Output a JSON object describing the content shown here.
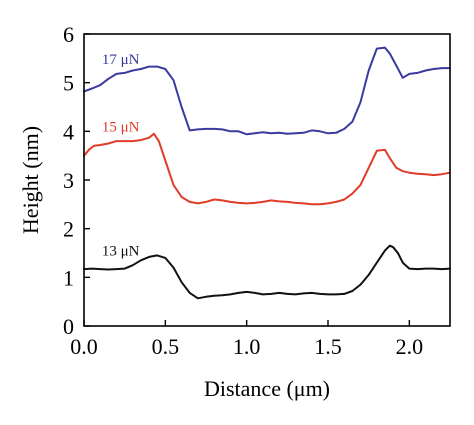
{
  "chart_data": {
    "type": "line",
    "title": "",
    "xlabel": "Distance (μm)",
    "ylabel": "Height (nm)",
    "xlim": [
      0,
      2.25
    ],
    "ylim": [
      0,
      6
    ],
    "x_ticks": [
      0.0,
      0.5,
      1.0,
      1.5,
      2.0
    ],
    "x_tick_labels": [
      "0.0",
      "0.5",
      "1.0",
      "1.5",
      "2.0"
    ],
    "y_ticks": [
      0,
      1,
      2,
      3,
      4,
      5,
      6
    ],
    "y_tick_labels": [
      "0",
      "1",
      "2",
      "3",
      "4",
      "5",
      "6"
    ],
    "grid": false,
    "series": [
      {
        "name": "17 μN",
        "color": "#3a3aa0",
        "label_at": [
          0.11,
          5.38
        ],
        "points": [
          [
            0,
            4.82
          ],
          [
            0.05,
            4.88
          ],
          [
            0.1,
            4.95
          ],
          [
            0.15,
            5.08
          ],
          [
            0.2,
            5.18
          ],
          [
            0.25,
            5.2
          ],
          [
            0.3,
            5.25
          ],
          [
            0.35,
            5.28
          ],
          [
            0.4,
            5.33
          ],
          [
            0.45,
            5.33
          ],
          [
            0.5,
            5.28
          ],
          [
            0.55,
            5.05
          ],
          [
            0.6,
            4.5
          ],
          [
            0.65,
            4.02
          ],
          [
            0.7,
            4.04
          ],
          [
            0.75,
            4.05
          ],
          [
            0.8,
            4.05
          ],
          [
            0.85,
            4.04
          ],
          [
            0.9,
            4.0
          ],
          [
            0.95,
            4.0
          ],
          [
            1.0,
            3.94
          ],
          [
            1.05,
            3.96
          ],
          [
            1.1,
            3.98
          ],
          [
            1.15,
            3.96
          ],
          [
            1.2,
            3.97
          ],
          [
            1.25,
            3.95
          ],
          [
            1.3,
            3.96
          ],
          [
            1.35,
            3.97
          ],
          [
            1.4,
            4.02
          ],
          [
            1.45,
            4.0
          ],
          [
            1.5,
            3.96
          ],
          [
            1.55,
            3.97
          ],
          [
            1.6,
            4.05
          ],
          [
            1.65,
            4.2
          ],
          [
            1.7,
            4.6
          ],
          [
            1.75,
            5.25
          ],
          [
            1.8,
            5.7
          ],
          [
            1.85,
            5.72
          ],
          [
            1.88,
            5.6
          ],
          [
            1.92,
            5.35
          ],
          [
            1.96,
            5.1
          ],
          [
            2.0,
            5.18
          ],
          [
            2.05,
            5.2
          ],
          [
            2.1,
            5.25
          ],
          [
            2.15,
            5.28
          ],
          [
            2.2,
            5.3
          ],
          [
            2.25,
            5.3
          ]
        ]
      },
      {
        "name": "15 μN",
        "color": "#e03c28",
        "label_at": [
          0.11,
          4.0
        ],
        "points": [
          [
            0,
            3.5
          ],
          [
            0.03,
            3.62
          ],
          [
            0.06,
            3.7
          ],
          [
            0.1,
            3.72
          ],
          [
            0.15,
            3.75
          ],
          [
            0.2,
            3.8
          ],
          [
            0.25,
            3.8
          ],
          [
            0.3,
            3.8
          ],
          [
            0.35,
            3.82
          ],
          [
            0.4,
            3.87
          ],
          [
            0.43,
            3.95
          ],
          [
            0.46,
            3.8
          ],
          [
            0.5,
            3.4
          ],
          [
            0.55,
            2.9
          ],
          [
            0.6,
            2.65
          ],
          [
            0.65,
            2.55
          ],
          [
            0.7,
            2.52
          ],
          [
            0.75,
            2.55
          ],
          [
            0.8,
            2.6
          ],
          [
            0.85,
            2.58
          ],
          [
            0.9,
            2.55
          ],
          [
            0.95,
            2.53
          ],
          [
            1.0,
            2.52
          ],
          [
            1.05,
            2.53
          ],
          [
            1.1,
            2.55
          ],
          [
            1.15,
            2.58
          ],
          [
            1.2,
            2.56
          ],
          [
            1.25,
            2.55
          ],
          [
            1.3,
            2.53
          ],
          [
            1.35,
            2.52
          ],
          [
            1.4,
            2.5
          ],
          [
            1.45,
            2.5
          ],
          [
            1.5,
            2.52
          ],
          [
            1.55,
            2.55
          ],
          [
            1.6,
            2.6
          ],
          [
            1.65,
            2.72
          ],
          [
            1.7,
            2.9
          ],
          [
            1.75,
            3.25
          ],
          [
            1.8,
            3.6
          ],
          [
            1.85,
            3.62
          ],
          [
            1.88,
            3.45
          ],
          [
            1.92,
            3.25
          ],
          [
            1.96,
            3.18
          ],
          [
            2.0,
            3.15
          ],
          [
            2.05,
            3.13
          ],
          [
            2.1,
            3.12
          ],
          [
            2.15,
            3.1
          ],
          [
            2.2,
            3.12
          ],
          [
            2.25,
            3.15
          ]
        ]
      },
      {
        "name": "13 μN",
        "color": "#111111",
        "label_at": [
          0.11,
          1.45
        ],
        "points": [
          [
            0,
            1.17
          ],
          [
            0.05,
            1.18
          ],
          [
            0.1,
            1.17
          ],
          [
            0.15,
            1.16
          ],
          [
            0.2,
            1.17
          ],
          [
            0.25,
            1.18
          ],
          [
            0.3,
            1.25
          ],
          [
            0.35,
            1.35
          ],
          [
            0.4,
            1.42
          ],
          [
            0.45,
            1.45
          ],
          [
            0.5,
            1.4
          ],
          [
            0.55,
            1.2
          ],
          [
            0.6,
            0.9
          ],
          [
            0.65,
            0.68
          ],
          [
            0.7,
            0.57
          ],
          [
            0.75,
            0.6
          ],
          [
            0.8,
            0.62
          ],
          [
            0.85,
            0.63
          ],
          [
            0.9,
            0.65
          ],
          [
            0.95,
            0.68
          ],
          [
            1.0,
            0.7
          ],
          [
            1.05,
            0.68
          ],
          [
            1.1,
            0.65
          ],
          [
            1.15,
            0.66
          ],
          [
            1.2,
            0.68
          ],
          [
            1.25,
            0.66
          ],
          [
            1.3,
            0.65
          ],
          [
            1.35,
            0.67
          ],
          [
            1.4,
            0.68
          ],
          [
            1.45,
            0.66
          ],
          [
            1.5,
            0.65
          ],
          [
            1.55,
            0.65
          ],
          [
            1.6,
            0.66
          ],
          [
            1.65,
            0.72
          ],
          [
            1.7,
            0.85
          ],
          [
            1.75,
            1.05
          ],
          [
            1.8,
            1.3
          ],
          [
            1.85,
            1.55
          ],
          [
            1.88,
            1.65
          ],
          [
            1.9,
            1.62
          ],
          [
            1.93,
            1.5
          ],
          [
            1.96,
            1.3
          ],
          [
            2.0,
            1.18
          ],
          [
            2.05,
            1.17
          ],
          [
            2.1,
            1.18
          ],
          [
            2.15,
            1.18
          ],
          [
            2.2,
            1.17
          ],
          [
            2.25,
            1.18
          ]
        ]
      }
    ]
  }
}
